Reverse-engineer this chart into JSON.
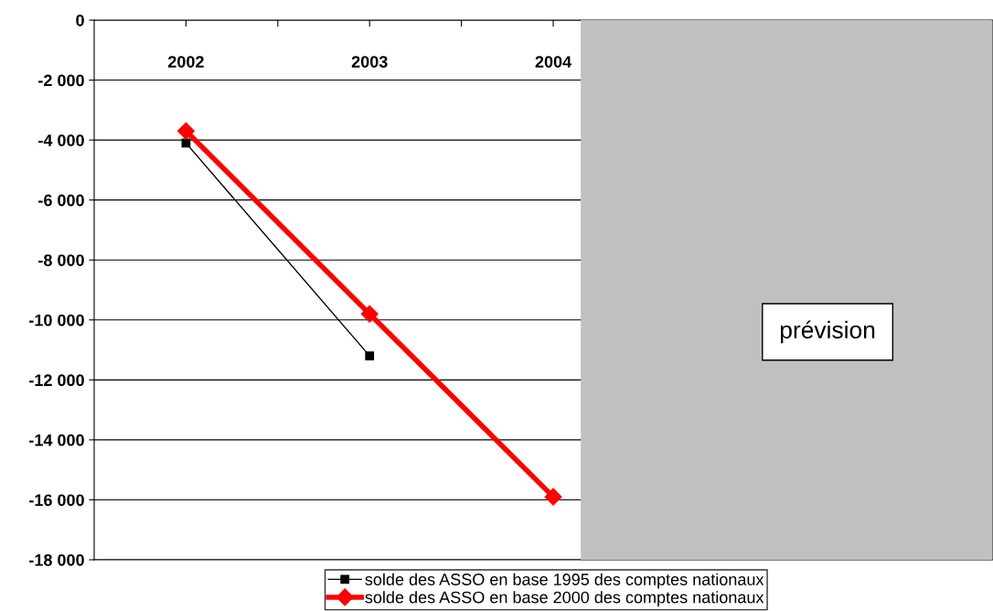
{
  "chart_data": {
    "type": "line",
    "x": [
      2002,
      2003,
      2004
    ],
    "series": [
      {
        "name": "solde des ASSO en base 1995 des comptes nationaux",
        "color": "#000000",
        "values": [
          -4100,
          -11200,
          null
        ],
        "marker": "square"
      },
      {
        "name": "solde des ASSO en base 2000 des comptes nationaux",
        "color": "#ff0000",
        "values": [
          -3700,
          -9800,
          -15900
        ],
        "marker": "diamond"
      }
    ],
    "xlim": [
      2001.5,
      2006.39
    ],
    "xticks": [
      2002,
      {
        "value": 2002.5,
        "label": null
      },
      2003,
      {
        "value": 2003.5,
        "label": null
      },
      2004
    ],
    "ylim": [
      -18000,
      0
    ],
    "yticks": [
      {
        "value": -18000,
        "label": "-18 000"
      },
      {
        "value": -16000,
        "label": "-16 000"
      },
      {
        "value": -14000,
        "label": "-14 000"
      },
      {
        "value": -12000,
        "label": "-12 000"
      },
      {
        "value": -10000,
        "label": "-10 000"
      },
      {
        "value": -8000,
        "label": "-8 000"
      },
      {
        "value": -6000,
        "label": "-6 000"
      },
      {
        "value": -4000,
        "label": "-4 000"
      },
      {
        "value": -2000,
        "label": "-2 000"
      },
      0
    ],
    "bands": [
      {
        "axis": "x",
        "from": 2004.15,
        "to": 2006.39,
        "label": "prévision",
        "color": "#c0c0c0"
      }
    ],
    "grid": "y",
    "legend": "bottom",
    "line_style": "solid"
  }
}
